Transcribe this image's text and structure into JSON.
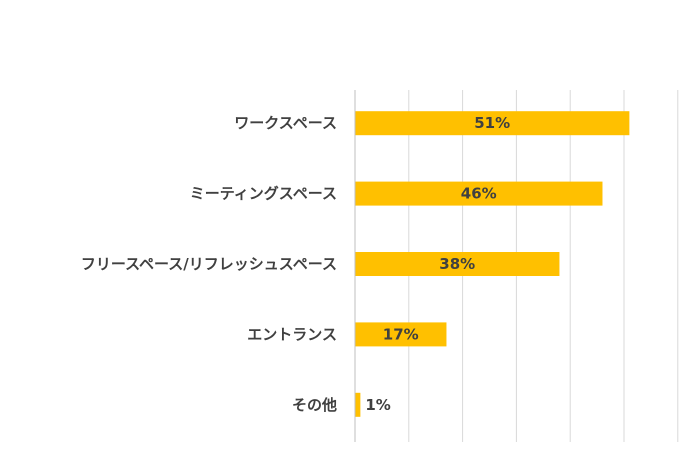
{
  "chart_data": {
    "type": "bar",
    "orientation": "horizontal",
    "title": "",
    "xlabel": "",
    "ylabel": "",
    "categories": [
      "ワークスペース",
      "ミーティングスペース",
      "フリースペース/リフレッシュスペース",
      "エントランス",
      "その他"
    ],
    "values": [
      51,
      46,
      38,
      17,
      1
    ],
    "value_labels": [
      "51%",
      "46%",
      "38%",
      "17%",
      "1%"
    ],
    "xlim": [
      0,
      60
    ],
    "grid": true,
    "legend": "none",
    "colors": {
      "bar": "#FFC000",
      "gridline": "#D9D9D9",
      "axis": "#BFBFBF",
      "text": "#404040"
    }
  }
}
